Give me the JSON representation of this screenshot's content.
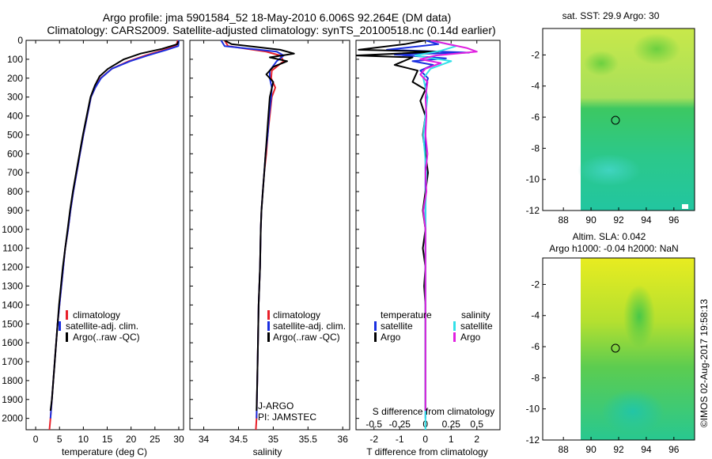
{
  "title": {
    "line1": "Argo profile: jma 5901584_52 18-May-2010 6.006S 92.264E (DM data)",
    "line2": "Climatology: CARS2009. Satellite-adjusted climatology: synTS_20100518.nc (0.14d earlier)"
  },
  "colors": {
    "clim": "#e8202a",
    "sat": "#1a2fe0",
    "argo": "#000000",
    "s_sat": "#33e0e8",
    "s_argo": "#e020e0"
  },
  "chart_data": [
    {
      "id": "temperature",
      "type": "line",
      "xlabel": "temperature (deg C)",
      "xlim": [
        -2,
        31
      ],
      "xticks": [
        0,
        5,
        10,
        15,
        20,
        25,
        30
      ],
      "ylim": [
        0,
        2060
      ],
      "yticks": [
        0,
        100,
        200,
        300,
        400,
        500,
        600,
        700,
        800,
        900,
        1000,
        1100,
        1200,
        1300,
        1400,
        1500,
        1600,
        1700,
        1800,
        1900,
        2000
      ],
      "legend": [
        "climatology",
        "satellite-adj. clim.",
        "Argo(..raw -QC)"
      ],
      "series": [
        {
          "name": "climatology",
          "color_key": "clim",
          "points": [
            [
              29.8,
              0
            ],
            [
              29.4,
              30
            ],
            [
              27,
              50
            ],
            [
              23,
              80
            ],
            [
              19.5,
              110
            ],
            [
              16,
              150
            ],
            [
              13.6,
              200
            ],
            [
              12.5,
              250
            ],
            [
              11.6,
              300
            ],
            [
              10.8,
              400
            ],
            [
              10,
              500
            ],
            [
              9.3,
              600
            ],
            [
              8.6,
              700
            ],
            [
              7.9,
              800
            ],
            [
              7.3,
              900
            ],
            [
              6.8,
              1000
            ],
            [
              6.2,
              1100
            ],
            [
              5.8,
              1200
            ],
            [
              5.4,
              1300
            ],
            [
              5,
              1400
            ],
            [
              4.6,
              1500
            ],
            [
              4.3,
              1600
            ],
            [
              4,
              1700
            ],
            [
              3.7,
              1800
            ],
            [
              3.4,
              1900
            ],
            [
              3.1,
              2000
            ],
            [
              2.9,
              2060
            ]
          ]
        },
        {
          "name": "satellite-adj. clim.",
          "color_key": "sat",
          "points": [
            [
              30,
              0
            ],
            [
              29.9,
              30
            ],
            [
              27.5,
              50
            ],
            [
              23.5,
              80
            ],
            [
              19.8,
              110
            ],
            [
              16,
              150
            ],
            [
              13.7,
              200
            ],
            [
              12.5,
              250
            ],
            [
              11.6,
              300
            ],
            [
              10.8,
              400
            ],
            [
              10,
              500
            ],
            [
              9.3,
              600
            ],
            [
              8.6,
              700
            ],
            [
              7.9,
              800
            ],
            [
              7.3,
              900
            ],
            [
              6.8,
              1000
            ],
            [
              6.2,
              1100
            ],
            [
              5.8,
              1200
            ],
            [
              5.4,
              1300
            ],
            [
              5,
              1400
            ],
            [
              4.6,
              1500
            ],
            [
              4.3,
              1600
            ],
            [
              4,
              1700
            ],
            [
              3.7,
              1800
            ],
            [
              3.4,
              1900
            ],
            [
              3.1,
              2000
            ]
          ]
        },
        {
          "name": "Argo(..raw -QC)",
          "color_key": "argo",
          "points": [
            [
              29.9,
              5
            ],
            [
              29.7,
              20
            ],
            [
              26.5,
              45
            ],
            [
              22,
              70
            ],
            [
              18.5,
              100
            ],
            [
              15.2,
              150
            ],
            [
              13.4,
              190
            ],
            [
              12.4,
              240
            ],
            [
              11.5,
              300
            ],
            [
              10.7,
              400
            ],
            [
              9.9,
              500
            ],
            [
              9.2,
              600
            ],
            [
              8.5,
              700
            ],
            [
              7.8,
              800
            ],
            [
              7.2,
              900
            ],
            [
              6.7,
              1000
            ],
            [
              6.2,
              1100
            ],
            [
              5.7,
              1200
            ],
            [
              5.3,
              1300
            ],
            [
              4.9,
              1400
            ],
            [
              4.6,
              1500
            ],
            [
              4.3,
              1600
            ],
            [
              4,
              1700
            ],
            [
              3.7,
              1800
            ],
            [
              3.4,
              1900
            ],
            [
              3.1,
              1960
            ]
          ]
        }
      ]
    },
    {
      "id": "salinity",
      "type": "line",
      "xlabel": "salinity",
      "xlim": [
        33.8,
        36.1
      ],
      "xticks": [
        34,
        34.5,
        35,
        35.5,
        36
      ],
      "legend": [
        "climatology",
        "satellite-adj. clim.",
        "Argo(..raw -QC)"
      ],
      "annotations": [
        "J-ARGO",
        "PI: JAMSTEC"
      ],
      "series": [
        {
          "name": "climatology",
          "color_key": "clim",
          "points": [
            [
              34.3,
              0
            ],
            [
              34.35,
              30
            ],
            [
              34.9,
              60
            ],
            [
              35.1,
              80
            ],
            [
              35.15,
              110
            ],
            [
              34.98,
              160
            ],
            [
              34.97,
              200
            ],
            [
              35.03,
              250
            ],
            [
              34.98,
              300
            ],
            [
              34.95,
              400
            ],
            [
              34.92,
              500
            ],
            [
              34.9,
              600
            ],
            [
              34.87,
              700
            ],
            [
              34.85,
              800
            ],
            [
              34.83,
              900
            ],
            [
              34.82,
              1000
            ],
            [
              34.81,
              1200
            ],
            [
              34.79,
              1400
            ],
            [
              34.78,
              1600
            ],
            [
              34.77,
              1800
            ],
            [
              34.76,
              2000
            ],
            [
              34.75,
              2060
            ]
          ]
        },
        {
          "name": "satellite-adj. clim.",
          "color_key": "sat",
          "points": [
            [
              34.25,
              0
            ],
            [
              34.3,
              30
            ],
            [
              35.05,
              60
            ],
            [
              35.15,
              80
            ],
            [
              35.05,
              110
            ],
            [
              34.95,
              160
            ],
            [
              34.95,
              200
            ],
            [
              34.98,
              250
            ],
            [
              34.97,
              300
            ],
            [
              34.94,
              400
            ],
            [
              34.92,
              500
            ],
            [
              34.89,
              600
            ],
            [
              34.87,
              700
            ],
            [
              34.85,
              800
            ],
            [
              34.83,
              900
            ],
            [
              34.82,
              1000
            ],
            [
              34.81,
              1200
            ],
            [
              34.79,
              1400
            ],
            [
              34.78,
              1600
            ],
            [
              34.77,
              1800
            ],
            [
              34.76,
              2000
            ]
          ]
        },
        {
          "name": "Argo(..raw -QC)",
          "color_key": "argo",
          "points": [
            [
              34.3,
              0
            ],
            [
              34.4,
              20
            ],
            [
              35.1,
              50
            ],
            [
              35.3,
              70
            ],
            [
              34.95,
              90
            ],
            [
              35.2,
              110
            ],
            [
              35,
              140
            ],
            [
              34.9,
              180
            ],
            [
              35,
              220
            ],
            [
              34.95,
              300
            ],
            [
              34.93,
              400
            ],
            [
              34.91,
              500
            ],
            [
              34.89,
              600
            ],
            [
              34.87,
              700
            ],
            [
              34.85,
              800
            ],
            [
              34.83,
              900
            ],
            [
              34.82,
              1000
            ],
            [
              34.81,
              1200
            ],
            [
              34.79,
              1400
            ],
            [
              34.78,
              1600
            ],
            [
              34.77,
              1800
            ],
            [
              34.76,
              1960
            ]
          ]
        }
      ]
    },
    {
      "id": "differences",
      "type": "line",
      "xlabel": "T difference from climatology",
      "xlabel2": "S difference from climatology",
      "xlim": [
        -2.7,
        2.9
      ],
      "xticks": [
        -2,
        -1,
        0,
        1,
        2
      ],
      "xticks_s": [
        -0.5,
        -0.25,
        0,
        0.25,
        0.5
      ],
      "s_scale": 0.25,
      "legend_t_title": "temperature",
      "legend_s_title": "salinity",
      "legend_t": [
        "satellite",
        "Argo"
      ],
      "legend_s": [
        "satellite",
        "Argo"
      ],
      "series": [
        {
          "name": "T satellite",
          "color_key": "sat",
          "points": [
            [
              0,
              0
            ],
            [
              0.5,
              20
            ],
            [
              -1.5,
              50
            ],
            [
              1.7,
              65
            ],
            [
              -1.2,
              75
            ],
            [
              0.8,
              95
            ],
            [
              -0.5,
              110
            ],
            [
              0.3,
              130
            ],
            [
              -0.2,
              160
            ],
            [
              0.1,
              200
            ],
            [
              0,
              250
            ],
            [
              0.05,
              300
            ],
            [
              0,
              400
            ],
            [
              0,
              600
            ],
            [
              0,
              800
            ],
            [
              0,
              1000
            ],
            [
              0,
              1500
            ],
            [
              0,
              2000
            ]
          ]
        },
        {
          "name": "T Argo",
          "color_key": "argo",
          "points": [
            [
              0,
              0
            ],
            [
              -0.8,
              20
            ],
            [
              -2.6,
              50
            ],
            [
              0.5,
              60
            ],
            [
              -2.7,
              80
            ],
            [
              -0.5,
              90
            ],
            [
              -1.2,
              130
            ],
            [
              -0.3,
              160
            ],
            [
              -0.5,
              220
            ],
            [
              0,
              260
            ],
            [
              -0.2,
              320
            ],
            [
              0,
              400
            ],
            [
              -0.1,
              500
            ],
            [
              0,
              600
            ],
            [
              0.1,
              700
            ],
            [
              0,
              800
            ],
            [
              -0.1,
              900
            ],
            [
              0,
              1000
            ],
            [
              -0.1,
              1100
            ],
            [
              0,
              1200
            ],
            [
              -0.05,
              1300
            ],
            [
              0,
              1400
            ],
            [
              0,
              1500
            ],
            [
              0,
              1600
            ],
            [
              0,
              1800
            ],
            [
              0,
              1960
            ]
          ]
        },
        {
          "name": "S satellite",
          "color_key": "s_sat",
          "points": [
            [
              0.05,
              0
            ],
            [
              0.3,
              30
            ],
            [
              0.15,
              55
            ],
            [
              -0.1,
              80
            ],
            [
              0.25,
              110
            ],
            [
              0.05,
              150
            ],
            [
              -0.02,
              200
            ],
            [
              0.02,
              300
            ],
            [
              -0.02,
              500
            ],
            [
              0.01,
              700
            ],
            [
              0,
              900
            ],
            [
              0,
              1200
            ],
            [
              0,
              1600
            ],
            [
              0,
              2060
            ]
          ]
        },
        {
          "name": "S Argo",
          "color_key": "s_argo",
          "points": [
            [
              0.05,
              0
            ],
            [
              0.4,
              40
            ],
            [
              0.5,
              60
            ],
            [
              0.1,
              80
            ],
            [
              -0.05,
              100
            ],
            [
              0.15,
              120
            ],
            [
              0,
              150
            ],
            [
              -0.05,
              180
            ],
            [
              0.02,
              220
            ],
            [
              0,
              300
            ],
            [
              0.01,
              400
            ],
            [
              0,
              500
            ],
            [
              0.02,
              600
            ],
            [
              0,
              700
            ],
            [
              0.01,
              800
            ],
            [
              -0.02,
              900
            ],
            [
              0,
              1000
            ],
            [
              0,
              1200
            ],
            [
              0,
              1600
            ],
            [
              0,
              1960
            ]
          ]
        }
      ]
    },
    {
      "id": "map_sst",
      "type": "heatmap",
      "title": "sat. SST: 29.9 Argo: 30",
      "xlim": [
        86.5,
        97.5
      ],
      "ylim": [
        -12,
        -0.3
      ],
      "xticks": [
        88,
        90,
        92,
        94,
        96
      ],
      "yticks": [
        -2,
        -4,
        -6,
        -8,
        -10,
        -12
      ],
      "marker": [
        92.264,
        -6.006
      ]
    },
    {
      "id": "map_sla",
      "type": "heatmap",
      "title1": "Altim. SLA: 0.042",
      "title2": "Argo h1000: -0.04 h2000: NaN",
      "xlim": [
        86.5,
        97.5
      ],
      "ylim": [
        -12,
        -0.3
      ],
      "xticks": [
        88,
        90,
        92,
        94,
        96
      ],
      "yticks": [
        -2,
        -4,
        -6,
        -8,
        -10,
        -12
      ],
      "marker": [
        92.264,
        -6.006
      ]
    }
  ],
  "watermark": "©IMOS 02-Aug-2017 19:58:13"
}
